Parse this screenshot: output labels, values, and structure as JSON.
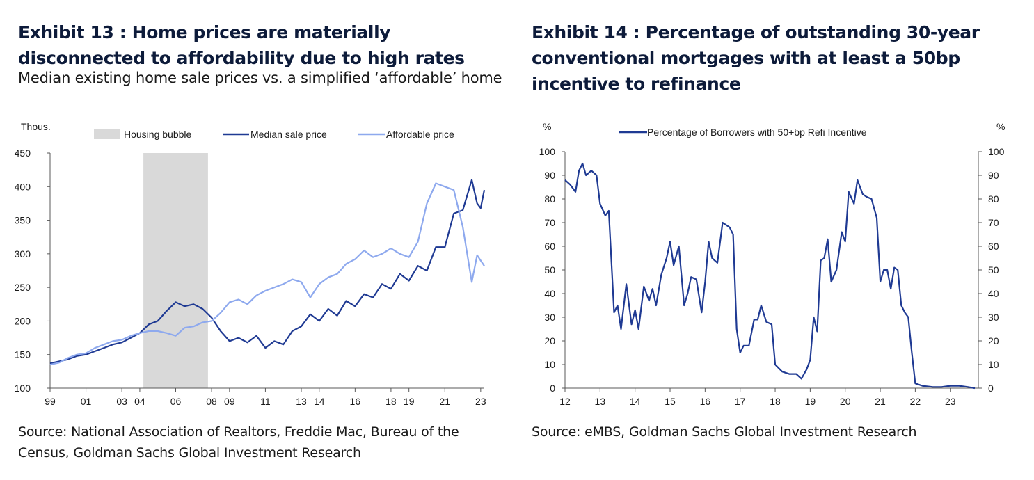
{
  "exhibit13": {
    "title": "Exhibit 13 : Home prices are materially disconnected to affordability due to high rates",
    "subtitle": "Median existing home sale prices vs. a simplified ‘affordable’ home",
    "source": "Source: National Association of Realtors, Freddie Mac, Bureau of the Census, Goldman Sachs Global Investment Research"
  },
  "exhibit14": {
    "title": "Exhibit 14 : Percentage of outstanding 30-year conventional mortgages with at least a 50bp incentive to refinance",
    "source": "Source: eMBS, Goldman Sachs Global Investment Research"
  },
  "colors": {
    "median": "#1f3a93",
    "affordable": "#8ea9ee",
    "bubble": "#d9d9d9",
    "axis": "#595959",
    "title": "#0d1b3a"
  },
  "chart_data": [
    {
      "type": "line",
      "yunit": "Thous.",
      "xlim": [
        1999,
        2023.2
      ],
      "ylim": [
        100,
        450
      ],
      "yticks": [
        100,
        150,
        200,
        250,
        300,
        350,
        400,
        450
      ],
      "xticks": [
        {
          "x": 1999,
          "label": "99"
        },
        {
          "x": 2001,
          "label": "01"
        },
        {
          "x": 2003,
          "label": "03"
        },
        {
          "x": 2004,
          "label": "04"
        },
        {
          "x": 2006,
          "label": "06"
        },
        {
          "x": 2008,
          "label": "08"
        },
        {
          "x": 2009,
          "label": "09"
        },
        {
          "x": 2011,
          "label": "11"
        },
        {
          "x": 2013,
          "label": "13"
        },
        {
          "x": 2014,
          "label": "14"
        },
        {
          "x": 2016,
          "label": "16"
        },
        {
          "x": 2018,
          "label": "18"
        },
        {
          "x": 2019,
          "label": "19"
        },
        {
          "x": 2021,
          "label": "21"
        },
        {
          "x": 2023,
          "label": "23"
        }
      ],
      "shade": {
        "label": "Housing bubble",
        "x0": 2004.2,
        "x1": 2007.8
      },
      "legend_position": "top",
      "series": [
        {
          "name": "Median sale price",
          "points": [
            [
              1999.0,
              137
            ],
            [
              1999.5,
              140
            ],
            [
              2000.0,
              143
            ],
            [
              2000.5,
              148
            ],
            [
              2001.0,
              150
            ],
            [
              2001.5,
              155
            ],
            [
              2002.0,
              160
            ],
            [
              2002.5,
              165
            ],
            [
              2003.0,
              168
            ],
            [
              2003.5,
              175
            ],
            [
              2004.0,
              182
            ],
            [
              2004.5,
              195
            ],
            [
              2005.0,
              200
            ],
            [
              2005.5,
              215
            ],
            [
              2006.0,
              228
            ],
            [
              2006.5,
              222
            ],
            [
              2007.0,
              225
            ],
            [
              2007.5,
              218
            ],
            [
              2008.0,
              205
            ],
            [
              2008.5,
              185
            ],
            [
              2009.0,
              170
            ],
            [
              2009.5,
              175
            ],
            [
              2010.0,
              168
            ],
            [
              2010.5,
              178
            ],
            [
              2011.0,
              160
            ],
            [
              2011.5,
              170
            ],
            [
              2012.0,
              165
            ],
            [
              2012.5,
              185
            ],
            [
              2013.0,
              192
            ],
            [
              2013.5,
              210
            ],
            [
              2014.0,
              200
            ],
            [
              2014.5,
              218
            ],
            [
              2015.0,
              208
            ],
            [
              2015.5,
              230
            ],
            [
              2016.0,
              222
            ],
            [
              2016.5,
              240
            ],
            [
              2017.0,
              235
            ],
            [
              2017.5,
              255
            ],
            [
              2018.0,
              248
            ],
            [
              2018.5,
              270
            ],
            [
              2019.0,
              260
            ],
            [
              2019.5,
              282
            ],
            [
              2020.0,
              275
            ],
            [
              2020.5,
              310
            ],
            [
              2021.0,
              310
            ],
            [
              2021.5,
              360
            ],
            [
              2022.0,
              365
            ],
            [
              2022.5,
              410
            ],
            [
              2022.8,
              375
            ],
            [
              2023.0,
              368
            ],
            [
              2023.2,
              395
            ]
          ]
        },
        {
          "name": "Affordable price",
          "points": [
            [
              1999.0,
              135
            ],
            [
              1999.5,
              138
            ],
            [
              2000.0,
              145
            ],
            [
              2000.5,
              150
            ],
            [
              2001.0,
              152
            ],
            [
              2001.5,
              160
            ],
            [
              2002.0,
              165
            ],
            [
              2002.5,
              170
            ],
            [
              2003.0,
              172
            ],
            [
              2003.5,
              178
            ],
            [
              2004.0,
              182
            ],
            [
              2004.5,
              185
            ],
            [
              2005.0,
              185
            ],
            [
              2005.5,
              182
            ],
            [
              2006.0,
              178
            ],
            [
              2006.5,
              190
            ],
            [
              2007.0,
              192
            ],
            [
              2007.5,
              198
            ],
            [
              2008.0,
              200
            ],
            [
              2008.5,
              212
            ],
            [
              2009.0,
              228
            ],
            [
              2009.5,
              232
            ],
            [
              2010.0,
              225
            ],
            [
              2010.5,
              238
            ],
            [
              2011.0,
              245
            ],
            [
              2011.5,
              250
            ],
            [
              2012.0,
              255
            ],
            [
              2012.5,
              262
            ],
            [
              2013.0,
              258
            ],
            [
              2013.5,
              235
            ],
            [
              2014.0,
              255
            ],
            [
              2014.5,
              265
            ],
            [
              2015.0,
              270
            ],
            [
              2015.5,
              285
            ],
            [
              2016.0,
              292
            ],
            [
              2016.5,
              305
            ],
            [
              2017.0,
              295
            ],
            [
              2017.5,
              300
            ],
            [
              2018.0,
              308
            ],
            [
              2018.5,
              300
            ],
            [
              2019.0,
              295
            ],
            [
              2019.5,
              318
            ],
            [
              2020.0,
              375
            ],
            [
              2020.5,
              405
            ],
            [
              2021.0,
              400
            ],
            [
              2021.5,
              395
            ],
            [
              2022.0,
              340
            ],
            [
              2022.5,
              258
            ],
            [
              2022.8,
              298
            ],
            [
              2023.0,
              290
            ],
            [
              2023.2,
              282
            ]
          ]
        }
      ]
    },
    {
      "type": "line",
      "yunit_left": "%",
      "yunit_right": "%",
      "xlim": [
        2012,
        2023.8
      ],
      "ylim": [
        0,
        100
      ],
      "yticks": [
        0,
        10,
        20,
        30,
        40,
        50,
        60,
        70,
        80,
        90,
        100
      ],
      "xticks": [
        {
          "x": 2012,
          "label": "12"
        },
        {
          "x": 2013,
          "label": "13"
        },
        {
          "x": 2014,
          "label": "14"
        },
        {
          "x": 2015,
          "label": "15"
        },
        {
          "x": 2016,
          "label": "16"
        },
        {
          "x": 2017,
          "label": "17"
        },
        {
          "x": 2018,
          "label": "18"
        },
        {
          "x": 2019,
          "label": "19"
        },
        {
          "x": 2020,
          "label": "20"
        },
        {
          "x": 2021,
          "label": "21"
        },
        {
          "x": 2022,
          "label": "22"
        },
        {
          "x": 2023,
          "label": "23"
        }
      ],
      "legend_position": "top",
      "series": [
        {
          "name": "Percentage of Borrowers with 50+bp Refi Incentive",
          "points": [
            [
              2012.0,
              88
            ],
            [
              2012.15,
              86
            ],
            [
              2012.3,
              83
            ],
            [
              2012.4,
              92
            ],
            [
              2012.5,
              95
            ],
            [
              2012.6,
              90
            ],
            [
              2012.75,
              92
            ],
            [
              2012.9,
              90
            ],
            [
              2013.0,
              78
            ],
            [
              2013.15,
              73
            ],
            [
              2013.25,
              75
            ],
            [
              2013.4,
              32
            ],
            [
              2013.5,
              35
            ],
            [
              2013.6,
              25
            ],
            [
              2013.75,
              44
            ],
            [
              2013.9,
              27
            ],
            [
              2014.0,
              33
            ],
            [
              2014.1,
              25
            ],
            [
              2014.25,
              43
            ],
            [
              2014.4,
              37
            ],
            [
              2014.5,
              42
            ],
            [
              2014.6,
              35
            ],
            [
              2014.75,
              48
            ],
            [
              2014.9,
              55
            ],
            [
              2015.0,
              62
            ],
            [
              2015.1,
              52
            ],
            [
              2015.25,
              60
            ],
            [
              2015.4,
              35
            ],
            [
              2015.5,
              40
            ],
            [
              2015.6,
              47
            ],
            [
              2015.75,
              46
            ],
            [
              2015.9,
              32
            ],
            [
              2016.0,
              45
            ],
            [
              2016.1,
              62
            ],
            [
              2016.2,
              55
            ],
            [
              2016.35,
              53
            ],
            [
              2016.5,
              70
            ],
            [
              2016.7,
              68
            ],
            [
              2016.8,
              65
            ],
            [
              2016.9,
              25
            ],
            [
              2017.0,
              15
            ],
            [
              2017.1,
              18
            ],
            [
              2017.25,
              18
            ],
            [
              2017.4,
              29
            ],
            [
              2017.5,
              29
            ],
            [
              2017.6,
              35
            ],
            [
              2017.75,
              28
            ],
            [
              2017.9,
              27
            ],
            [
              2018.0,
              10
            ],
            [
              2018.2,
              7
            ],
            [
              2018.4,
              6
            ],
            [
              2018.5,
              6
            ],
            [
              2018.6,
              6
            ],
            [
              2018.75,
              4
            ],
            [
              2018.9,
              8
            ],
            [
              2019.0,
              12
            ],
            [
              2019.1,
              30
            ],
            [
              2019.2,
              24
            ],
            [
              2019.3,
              54
            ],
            [
              2019.4,
              55
            ],
            [
              2019.5,
              63
            ],
            [
              2019.6,
              45
            ],
            [
              2019.75,
              50
            ],
            [
              2019.9,
              66
            ],
            [
              2020.0,
              62
            ],
            [
              2020.1,
              83
            ],
            [
              2020.25,
              78
            ],
            [
              2020.35,
              88
            ],
            [
              2020.5,
              82
            ],
            [
              2020.6,
              81
            ],
            [
              2020.75,
              80
            ],
            [
              2020.9,
              72
            ],
            [
              2021.0,
              45
            ],
            [
              2021.1,
              50
            ],
            [
              2021.2,
              50
            ],
            [
              2021.3,
              42
            ],
            [
              2021.4,
              51
            ],
            [
              2021.5,
              50
            ],
            [
              2021.6,
              35
            ],
            [
              2021.7,
              32
            ],
            [
              2021.8,
              30
            ],
            [
              2021.9,
              15
            ],
            [
              2022.0,
              2
            ],
            [
              2022.2,
              1
            ],
            [
              2022.5,
              0.5
            ],
            [
              2022.75,
              0.5
            ],
            [
              2023.0,
              1
            ],
            [
              2023.25,
              1
            ],
            [
              2023.5,
              0.5
            ],
            [
              2023.7,
              0
            ]
          ]
        }
      ]
    }
  ]
}
